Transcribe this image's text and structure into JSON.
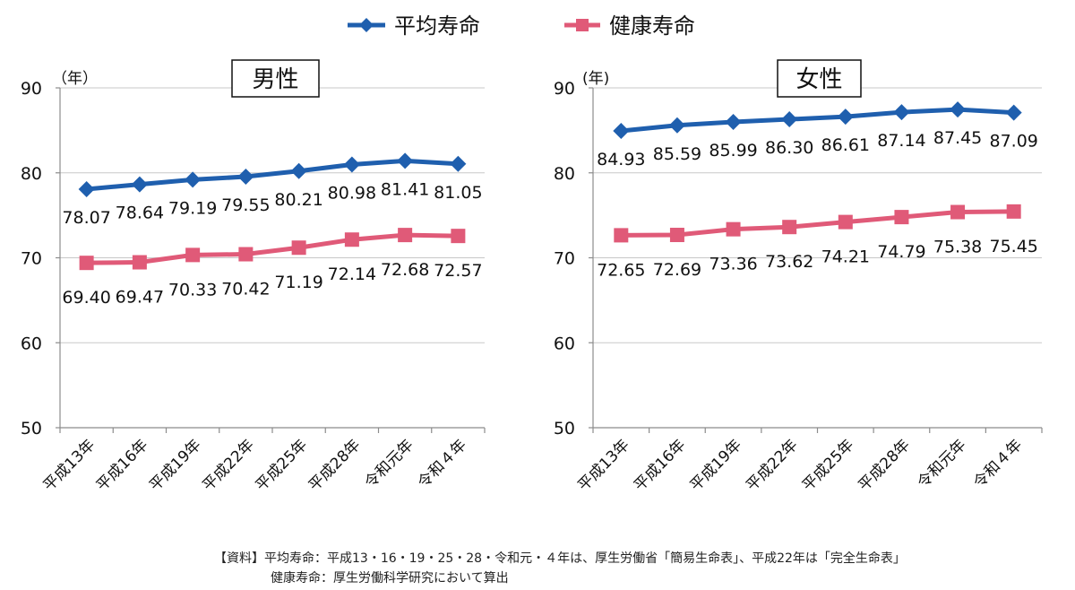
{
  "legend": {
    "items": [
      {
        "label": "平均寿命",
        "color": "#1f5fae",
        "marker": "diamond"
      },
      {
        "label": "健康寿命",
        "color": "#e05a78",
        "marker": "square"
      }
    ]
  },
  "source": {
    "line1": "【資料】平均寿命：平成13・16・19・25・28・令和元・４年は、厚生労働省「簡易生命表」、平成22年は「完全生命表」",
    "line2": "健康寿命：厚生労働科学研究において算出"
  },
  "chart_data": [
    {
      "type": "line",
      "title": "男性",
      "ylabel": "（年）",
      "ylim": [
        50,
        90
      ],
      "yticks": [
        50,
        60,
        70,
        80,
        90
      ],
      "grid": true,
      "legend": "top-center",
      "categories": [
        "平成13年",
        "平成16年",
        "平成19年",
        "平成22年",
        "平成25年",
        "平成28年",
        "令和元年",
        "令和４年"
      ],
      "series": [
        {
          "name": "平均寿命",
          "color": "#1f5fae",
          "values": [
            78.07,
            78.64,
            79.19,
            79.55,
            80.21,
            80.98,
            81.41,
            81.05
          ],
          "labels": [
            "78.07",
            "78.64",
            "79.19",
            "79.55",
            "80.21",
            "80.98",
            "81.41",
            "81.05"
          ]
        },
        {
          "name": "健康寿命",
          "color": "#e05a78",
          "values": [
            69.4,
            69.47,
            70.33,
            70.42,
            71.19,
            72.14,
            72.68,
            72.57
          ],
          "labels": [
            "69.40",
            "69.47",
            "70.33",
            "70.42",
            "71.19",
            "72.14",
            "72.68",
            "72.57"
          ]
        }
      ]
    },
    {
      "type": "line",
      "title": "女性",
      "ylabel": "(年)",
      "ylim": [
        50,
        90
      ],
      "yticks": [
        50,
        60,
        70,
        80,
        90
      ],
      "grid": true,
      "legend": "top-center",
      "categories": [
        "平成13年",
        "平成16年",
        "平成19年",
        "平成22年",
        "平成25年",
        "平成28年",
        "令和元年",
        "令和４年"
      ],
      "series": [
        {
          "name": "平均寿命",
          "color": "#1f5fae",
          "values": [
            84.93,
            85.59,
            85.99,
            86.3,
            86.61,
            87.14,
            87.45,
            87.09
          ],
          "labels": [
            "84.93",
            "85.59",
            "85.99",
            "86.30",
            "86.61",
            "87.14",
            "87.45",
            "87.09"
          ]
        },
        {
          "name": "健康寿命",
          "color": "#e05a78",
          "values": [
            72.65,
            72.69,
            73.36,
            73.62,
            74.21,
            74.79,
            75.38,
            75.45
          ],
          "labels": [
            "72.65",
            "72.69",
            "73.36",
            "73.62",
            "74.21",
            "74.79",
            "75.38",
            "75.45"
          ]
        }
      ]
    }
  ]
}
